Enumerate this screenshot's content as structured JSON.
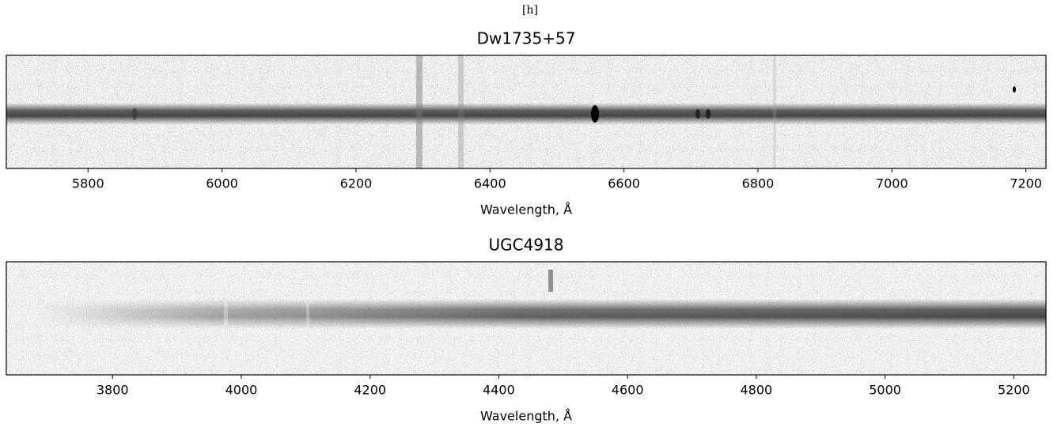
{
  "header": "[h]",
  "chart_data": [
    {
      "type": "spectrum2d",
      "title": "Dw1735+57",
      "xlabel": "Wavelength, Å",
      "xlim": [
        5678,
        7230
      ],
      "xticks": [
        5800,
        6000,
        6200,
        6400,
        6600,
        6800,
        7000,
        7200
      ]
    },
    {
      "type": "spectrum2d",
      "title": "UGC4918",
      "xlabel": "Wavelength, Å",
      "xlim": [
        3635,
        5250
      ],
      "xticks": [
        3800,
        4000,
        4200,
        4400,
        4600,
        4800,
        5000,
        5200
      ]
    }
  ]
}
